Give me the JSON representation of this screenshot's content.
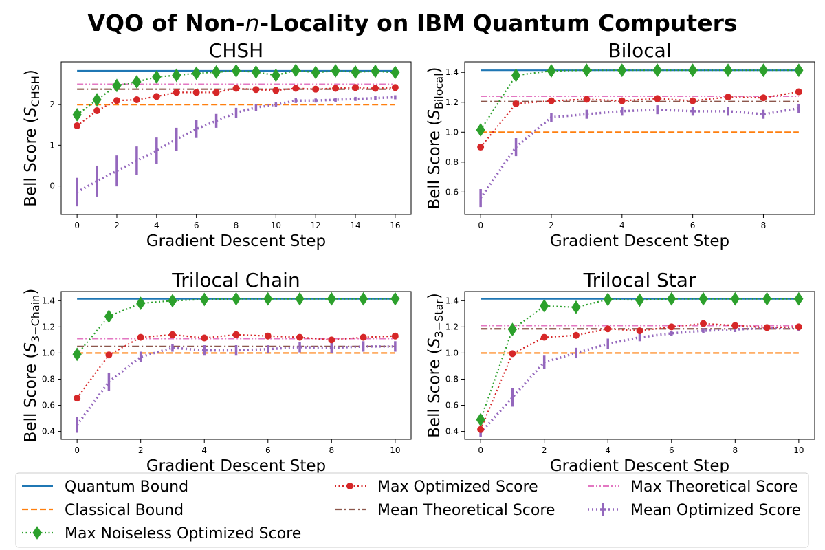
{
  "figure": {
    "title_prefix": "VQO of Non-",
    "title_italic": "n",
    "title_suffix": "-Locality on IBM Quantum Computers"
  },
  "colors": {
    "quantum": "#1f77b4",
    "classical": "#ff7f0e",
    "noiseless": "#2ca02c",
    "max_opt": "#d62728",
    "mean_theo": "#8c564b",
    "max_theo": "#e377c2",
    "mean_opt": "#9467bd"
  },
  "legend": [
    {
      "key": "quantum",
      "label": "Quantum Bound"
    },
    {
      "key": "classical",
      "label": "Classical Bound"
    },
    {
      "key": "noiseless",
      "label": "Max Noiseless Optimized Score"
    },
    {
      "key": "max_opt",
      "label": "Max Optimized Score"
    },
    {
      "key": "mean_theo",
      "label": "Mean Theoretical Score"
    },
    {
      "key": "max_theo",
      "label": "Max Theoretical Score"
    },
    {
      "key": "mean_opt",
      "label": "Mean Optimized Score"
    }
  ],
  "chart_data": [
    {
      "type": "line",
      "title": "CHSH",
      "xlabel": "Gradient Descent Step",
      "ylabel_prefix": "Bell Score (",
      "ylabel_sym": "S",
      "ylabel_sub": "CHSH",
      "ylabel_suffix": ")",
      "xlim": [
        -0.8,
        16.8
      ],
      "ylim": [
        -0.7,
        3.05
      ],
      "xticks": [
        0,
        2,
        4,
        6,
        8,
        10,
        12,
        14,
        16
      ],
      "yticks": [
        0,
        1,
        2
      ],
      "quantum_bound": 2.83,
      "classical_bound": 2.0,
      "max_theoretical": 2.5,
      "mean_theoretical": 2.38,
      "x": [
        0,
        1,
        2,
        3,
        4,
        5,
        6,
        7,
        8,
        9,
        10,
        11,
        12,
        13,
        14,
        15,
        16
      ],
      "noiseless": [
        1.75,
        2.12,
        2.47,
        2.56,
        2.68,
        2.72,
        2.77,
        2.8,
        2.83,
        2.8,
        2.72,
        2.84,
        2.79,
        2.83,
        2.8,
        2.82,
        2.79
      ],
      "max_optimized": [
        1.48,
        1.85,
        2.1,
        2.12,
        2.2,
        2.3,
        2.3,
        2.3,
        2.4,
        2.37,
        2.35,
        2.4,
        2.38,
        2.4,
        2.42,
        2.4,
        2.42
      ],
      "mean_optimized": [
        -0.15,
        0.12,
        0.37,
        0.62,
        0.87,
        1.15,
        1.4,
        1.6,
        1.8,
        1.93,
        2.0,
        2.1,
        2.1,
        2.12,
        2.14,
        2.16,
        2.18
      ],
      "mean_optimized_err": [
        0.35,
        0.38,
        0.38,
        0.35,
        0.32,
        0.28,
        0.22,
        0.17,
        0.12,
        0.08,
        0.06,
        0.06,
        0.05,
        0.05,
        0.05,
        0.05,
        0.05
      ]
    },
    {
      "type": "line",
      "title": "Bilocal",
      "xlabel": "Gradient Descent Step",
      "ylabel_prefix": "Bell Score (",
      "ylabel_sym": "S",
      "ylabel_sub": "Bilocal",
      "ylabel_suffix": ")",
      "xlim": [
        -0.45,
        9.45
      ],
      "ylim": [
        0.45,
        1.47
      ],
      "xticks": [
        0,
        2,
        4,
        6,
        8
      ],
      "yticks": [
        0.6,
        0.8,
        1.0,
        1.2,
        1.4
      ],
      "quantum_bound": 1.414,
      "classical_bound": 1.0,
      "max_theoretical": 1.24,
      "mean_theoretical": 1.205,
      "x": [
        0,
        1,
        2,
        3,
        4,
        5,
        6,
        7,
        8,
        9
      ],
      "noiseless": [
        1.015,
        1.38,
        1.41,
        1.414,
        1.414,
        1.414,
        1.414,
        1.414,
        1.414,
        1.414
      ],
      "max_optimized": [
        0.9,
        1.19,
        1.21,
        1.22,
        1.21,
        1.225,
        1.21,
        1.235,
        1.23,
        1.27
      ],
      "mean_optimized": [
        0.56,
        0.9,
        1.1,
        1.12,
        1.14,
        1.15,
        1.14,
        1.14,
        1.12,
        1.16
      ],
      "mean_optimized_err": [
        0.06,
        0.06,
        0.03,
        0.03,
        0.03,
        0.03,
        0.03,
        0.03,
        0.03,
        0.03
      ]
    },
    {
      "type": "line",
      "title": "Trilocal Chain",
      "xlabel": "Gradient Descent Step",
      "ylabel_prefix": "Bell Score (",
      "ylabel_sym": "S",
      "ylabel_sub": "3−Chain",
      "ylabel_suffix": ")",
      "xlim": [
        -0.5,
        10.5
      ],
      "ylim": [
        0.34,
        1.47
      ],
      "xticks": [
        0,
        2,
        4,
        6,
        8,
        10
      ],
      "yticks": [
        0.4,
        0.6,
        0.8,
        1.0,
        1.2,
        1.4
      ],
      "quantum_bound": 1.414,
      "classical_bound": 1.0,
      "max_theoretical": 1.11,
      "mean_theoretical": 1.05,
      "x": [
        0,
        1,
        2,
        3,
        4,
        5,
        6,
        7,
        8,
        9,
        10
      ],
      "noiseless": [
        0.99,
        1.28,
        1.38,
        1.4,
        1.41,
        1.414,
        1.414,
        1.414,
        1.414,
        1.414,
        1.414
      ],
      "max_optimized": [
        0.655,
        0.985,
        1.12,
        1.14,
        1.115,
        1.14,
        1.13,
        1.12,
        1.1,
        1.12,
        1.13
      ],
      "mean_optimized": [
        0.45,
        0.78,
        0.97,
        1.04,
        1.02,
        1.02,
        1.03,
        1.045,
        1.04,
        1.05,
        1.05
      ],
      "mean_optimized_err": [
        0.06,
        0.07,
        0.04,
        0.03,
        0.04,
        0.04,
        0.03,
        0.04,
        0.04,
        0.04,
        0.04
      ]
    },
    {
      "type": "line",
      "title": "Trilocal Star",
      "xlabel": "Gradient Descent Step",
      "ylabel_prefix": "Bell Score (",
      "ylabel_sym": "S",
      "ylabel_sub": "3−Star",
      "ylabel_suffix": ")",
      "xlim": [
        -0.5,
        10.5
      ],
      "ylim": [
        0.34,
        1.47
      ],
      "xticks": [
        0,
        2,
        4,
        6,
        8,
        10
      ],
      "yticks": [
        0.4,
        0.6,
        0.8,
        1.0,
        1.2,
        1.4
      ],
      "quantum_bound": 1.414,
      "classical_bound": 1.0,
      "max_theoretical": 1.21,
      "mean_theoretical": 1.185,
      "x": [
        0,
        1,
        2,
        3,
        4,
        5,
        6,
        7,
        8,
        9,
        10
      ],
      "noiseless": [
        0.49,
        1.18,
        1.36,
        1.35,
        1.41,
        1.405,
        1.414,
        1.414,
        1.414,
        1.414,
        1.414
      ],
      "max_optimized": [
        0.415,
        0.995,
        1.12,
        1.135,
        1.185,
        1.17,
        1.2,
        1.225,
        1.21,
        1.195,
        1.2
      ],
      "mean_optimized": [
        0.39,
        0.66,
        0.93,
        1.0,
        1.07,
        1.12,
        1.15,
        1.17,
        1.18,
        1.19,
        1.19
      ],
      "mean_optimized_err": [
        0.03,
        0.07,
        0.05,
        0.04,
        0.04,
        0.03,
        0.02,
        0.02,
        0.02,
        0.02,
        0.02
      ]
    }
  ]
}
